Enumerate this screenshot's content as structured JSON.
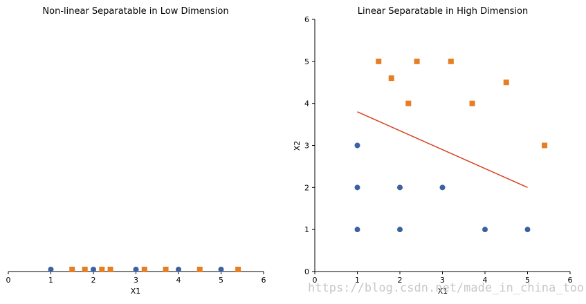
{
  "colors": {
    "circle": "#3b62a0",
    "square": "#e67e22",
    "line": "#d9401f",
    "axis": "#000000"
  },
  "watermark": "https://blog.csdn.net/made_in_china_too",
  "chart_data": [
    {
      "type": "scatter",
      "title": "Non-linear Separatable in Low Dimension",
      "xlabel": "X1",
      "ylabel": "",
      "xlim": [
        0,
        6
      ],
      "xticks": [
        0,
        1,
        2,
        3,
        4,
        5,
        6
      ],
      "yticks": [],
      "grid": false,
      "legend": "none",
      "series": [
        {
          "marker": "circle",
          "x": [
            1,
            2,
            3,
            4,
            5
          ]
        },
        {
          "marker": "square",
          "x": [
            1.5,
            1.8,
            2.2,
            2.4,
            3.2,
            3.7,
            4.5,
            5.4
          ]
        }
      ]
    },
    {
      "type": "scatter",
      "title": "Linear Separatable in High Dimension",
      "xlabel": "X1",
      "ylabel": "X2",
      "xlim": [
        0,
        6
      ],
      "ylim": [
        0,
        6
      ],
      "xticks": [
        0,
        1,
        2,
        3,
        4,
        5,
        6
      ],
      "yticks": [
        0,
        1,
        2,
        3,
        4,
        5,
        6
      ],
      "grid": false,
      "legend": "none",
      "series": [
        {
          "marker": "circle",
          "points": [
            [
              1,
              1
            ],
            [
              1,
              2
            ],
            [
              1,
              3
            ],
            [
              2,
              1
            ],
            [
              2,
              2
            ],
            [
              3,
              2
            ],
            [
              4,
              1
            ],
            [
              5,
              1
            ]
          ]
        },
        {
          "marker": "square",
          "points": [
            [
              1.5,
              5
            ],
            [
              1.8,
              4.6
            ],
            [
              2.2,
              4
            ],
            [
              2.4,
              5
            ],
            [
              3.2,
              5
            ],
            [
              3.7,
              4
            ],
            [
              4.5,
              4.5
            ],
            [
              5.4,
              3
            ]
          ]
        }
      ],
      "separator_line": {
        "x": [
          1,
          5
        ],
        "y": [
          3.8,
          2
        ]
      }
    }
  ]
}
